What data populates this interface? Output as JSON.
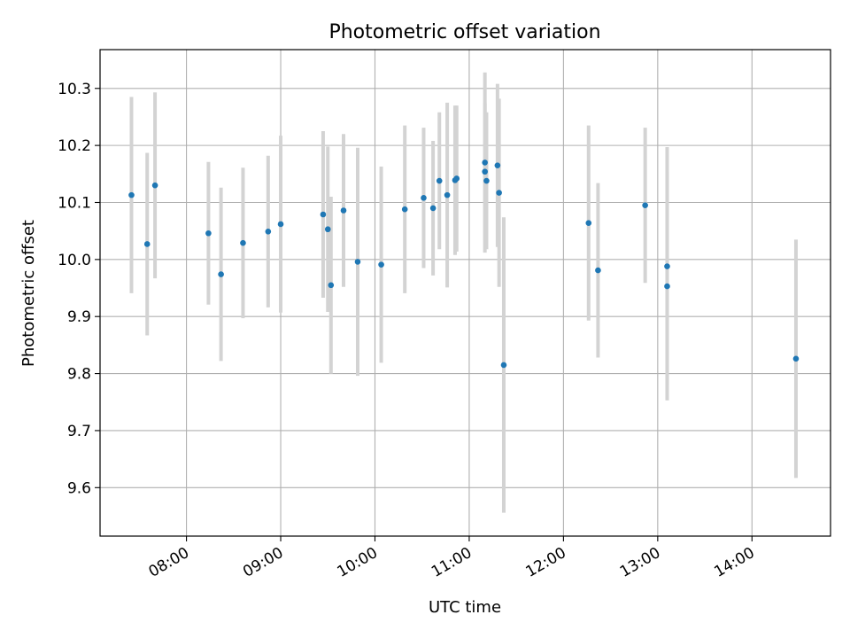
{
  "chart_data": {
    "type": "scatter",
    "title": "Photometric offset variation",
    "xlabel": "UTC time",
    "ylabel": "Photometric offset",
    "x_ticks": [
      "08:00",
      "09:00",
      "10:00",
      "11:00",
      "12:00",
      "13:00",
      "14:00"
    ],
    "y_ticks": [
      "9.6",
      "9.7",
      "9.8",
      "9.9",
      "10.0",
      "10.1",
      "10.2",
      "10.3"
    ],
    "xlim": [
      "07:05",
      "14:50"
    ],
    "ylim": [
      9.515,
      10.368
    ],
    "grid": true,
    "colors": {
      "point": "#1f77b4",
      "errorbar": "#d3d3d3",
      "grid": "#b0b0b0"
    },
    "points": [
      {
        "x": "07:25",
        "y": 10.113,
        "err": 0.172
      },
      {
        "x": "07:35",
        "y": 10.027,
        "err": 0.16
      },
      {
        "x": "07:40",
        "y": 10.13,
        "err": 0.163
      },
      {
        "x": "08:14",
        "y": 10.046,
        "err": 0.125
      },
      {
        "x": "08:22",
        "y": 9.974,
        "err": 0.152
      },
      {
        "x": "08:36",
        "y": 10.029,
        "err": 0.132
      },
      {
        "x": "08:52",
        "y": 10.049,
        "err": 0.133
      },
      {
        "x": "09:00",
        "y": 10.062,
        "err": 0.155
      },
      {
        "x": "09:27",
        "y": 10.079,
        "err": 0.146
      },
      {
        "x": "09:30",
        "y": 10.053,
        "err": 0.145
      },
      {
        "x": "09:32",
        "y": 9.955,
        "err": 0.155
      },
      {
        "x": "09:40",
        "y": 10.086,
        "err": 0.134
      },
      {
        "x": "09:49",
        "y": 9.996,
        "err": 0.2
      },
      {
        "x": "10:04",
        "y": 9.991,
        "err": 0.172
      },
      {
        "x": "10:19",
        "y": 10.088,
        "err": 0.147
      },
      {
        "x": "10:31",
        "y": 10.108,
        "err": 0.123
      },
      {
        "x": "10:37",
        "y": 10.09,
        "err": 0.118
      },
      {
        "x": "10:41",
        "y": 10.138,
        "err": 0.12
      },
      {
        "x": "10:46",
        "y": 10.113,
        "err": 0.162
      },
      {
        "x": "10:51",
        "y": 10.139,
        "err": 0.131
      },
      {
        "x": "10:52",
        "y": 10.142,
        "err": 0.128
      },
      {
        "x": "11:10",
        "y": 10.17,
        "err": 0.158
      },
      {
        "x": "11:10",
        "y": 10.154,
        "err": 0.12
      },
      {
        "x": "11:11",
        "y": 10.138,
        "err": 0.12
      },
      {
        "x": "11:18",
        "y": 10.165,
        "err": 0.143
      },
      {
        "x": "11:19",
        "y": 10.117,
        "err": 0.165
      },
      {
        "x": "11:22",
        "y": 9.815,
        "err": 0.259
      },
      {
        "x": "12:16",
        "y": 10.064,
        "err": 0.171
      },
      {
        "x": "12:22",
        "y": 9.981,
        "err": 0.153
      },
      {
        "x": "12:52",
        "y": 10.095,
        "err": 0.136
      },
      {
        "x": "13:06",
        "y": 9.988,
        "err": 0.209
      },
      {
        "x": "13:06",
        "y": 9.953,
        "err": 0.2
      },
      {
        "x": "14:28",
        "y": 9.826,
        "err": 0.209
      }
    ]
  }
}
